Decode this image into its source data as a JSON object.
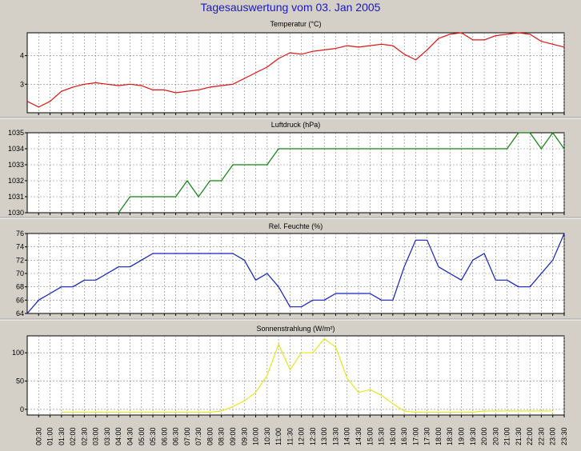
{
  "title": "Tagesauswertung vom 03. Jan 2005",
  "x_labels": [
    "00:30",
    "01:00",
    "01:30",
    "02:00",
    "02:30",
    "03:00",
    "03:30",
    "04:00",
    "04:30",
    "05:00",
    "05:30",
    "06:00",
    "06:30",
    "07:00",
    "07:30",
    "08:00",
    "08:30",
    "09:00",
    "09:30",
    "10:00",
    "10:30",
    "11:00",
    "11:30",
    "12:00",
    "12:30",
    "13:00",
    "13:30",
    "14:00",
    "14:30",
    "15:00",
    "15:30",
    "16:00",
    "16:30",
    "17:00",
    "17:30",
    "18:00",
    "18:30",
    "19:00",
    "19:30",
    "20:00",
    "20:30",
    "21:00",
    "21:30",
    "22:00",
    "22:30",
    "23:00",
    "23:30"
  ],
  "colors": {
    "background": "#d4d0c8",
    "plot_bg": "#ffffff",
    "grid": "#808080",
    "title": "#1a1ab8"
  },
  "chart_data": [
    {
      "type": "line",
      "title": "Temperatur (°C)",
      "ylim": [
        2,
        4.8
      ],
      "yticks": [
        3,
        4
      ],
      "grid": true,
      "color": "#e01010",
      "x": [
        0,
        1,
        2,
        3,
        4,
        5,
        6,
        7,
        8,
        9,
        10,
        11,
        12,
        13,
        14,
        15,
        16,
        17,
        18,
        19,
        20,
        21,
        22,
        23,
        24,
        25,
        26,
        27,
        28,
        29,
        30,
        31,
        32,
        33,
        34,
        35,
        36,
        37,
        38,
        39,
        40,
        41,
        42,
        43,
        44,
        45,
        46,
        47
      ],
      "values": [
        2.4,
        2.2,
        2.4,
        2.75,
        2.9,
        3.0,
        3.05,
        3.0,
        2.95,
        3.0,
        2.95,
        2.8,
        2.8,
        2.7,
        2.75,
        2.8,
        2.9,
        2.95,
        3.0,
        3.2,
        3.4,
        3.6,
        3.9,
        4.1,
        4.05,
        4.15,
        4.2,
        4.25,
        4.35,
        4.3,
        4.35,
        4.4,
        4.35,
        4.05,
        3.85,
        4.2,
        4.6,
        4.75,
        4.8,
        4.55,
        4.55,
        4.7,
        4.75,
        4.8,
        4.75,
        4.5,
        4.4,
        4.3
      ]
    },
    {
      "type": "line",
      "title": "Luftdruck (hPa)",
      "ylim": [
        1030,
        1035
      ],
      "yticks": [
        1030,
        1031,
        1032,
        1033,
        1034,
        1035
      ],
      "grid": true,
      "color": "#108010",
      "x": [
        8,
        9,
        10,
        11,
        12,
        13,
        14,
        15,
        16,
        17,
        18,
        19,
        20,
        21,
        22,
        23,
        24,
        25,
        26,
        27,
        28,
        29,
        30,
        31,
        32,
        33,
        34,
        35,
        36,
        37,
        38,
        39,
        40,
        41,
        42,
        43,
        44,
        45,
        46,
        47
      ],
      "values": [
        1030,
        1031,
        1031,
        1031,
        1031,
        1031,
        1032,
        1031,
        1032,
        1032,
        1033,
        1033,
        1033,
        1033,
        1034,
        1034,
        1034,
        1034,
        1034,
        1034,
        1034,
        1034,
        1034,
        1034,
        1034,
        1034,
        1034,
        1034,
        1034,
        1034,
        1034,
        1034,
        1034,
        1034,
        1034,
        1035,
        1035,
        1034,
        1035,
        1034
      ]
    },
    {
      "type": "line",
      "title": "Rel. Feuchte (%)",
      "ylim": [
        64,
        76
      ],
      "yticks": [
        64,
        66,
        68,
        70,
        72,
        74,
        76
      ],
      "grid": true,
      "color": "#1020c0",
      "x": [
        0,
        1,
        2,
        3,
        4,
        5,
        6,
        7,
        8,
        9,
        10,
        11,
        12,
        13,
        14,
        15,
        16,
        17,
        18,
        19,
        20,
        21,
        22,
        23,
        24,
        25,
        26,
        27,
        28,
        29,
        30,
        31,
        32,
        33,
        34,
        35,
        36,
        37,
        38,
        39,
        40,
        41,
        42,
        43,
        44,
        45,
        46,
        47
      ],
      "values": [
        64,
        66,
        67,
        68,
        68,
        69,
        69,
        70,
        71,
        71,
        72,
        73,
        73,
        73,
        73,
        73,
        73,
        73,
        73,
        72,
        69,
        70,
        68,
        65,
        65,
        66,
        66,
        67,
        67,
        67,
        67,
        66,
        66,
        71,
        75,
        75,
        71,
        70,
        69,
        72,
        73,
        69,
        69,
        68,
        68,
        70,
        72,
        76
      ]
    },
    {
      "type": "line",
      "title": "Sonnenstrahlung (W/m²)",
      "ylim": [
        -10,
        130
      ],
      "yticks": [
        0,
        50,
        100
      ],
      "grid": true,
      "color": "#e6e620",
      "x": [
        3,
        4,
        15,
        16,
        17,
        18,
        19,
        20,
        21,
        22,
        23,
        24,
        25,
        26,
        27,
        28,
        29,
        30,
        31,
        32,
        33,
        34,
        35,
        36,
        37,
        38,
        39,
        40,
        41,
        42,
        43,
        44,
        45,
        46
      ],
      "values": [
        -5,
        -5,
        -5,
        -5,
        -3,
        5,
        15,
        30,
        60,
        115,
        70,
        100,
        100,
        125,
        110,
        55,
        30,
        35,
        25,
        10,
        -3,
        -5,
        -5,
        -5,
        -5,
        -5,
        -5,
        -3,
        -3,
        -3,
        -3,
        -3,
        -3,
        -3
      ]
    }
  ]
}
